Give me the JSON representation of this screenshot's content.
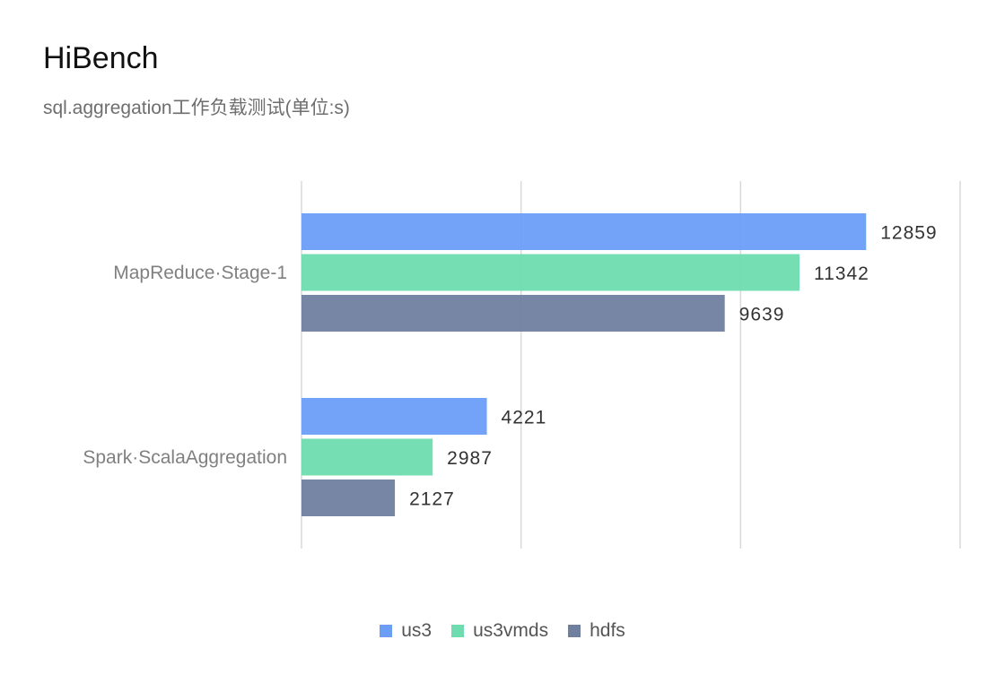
{
  "chart_data": {
    "type": "bar",
    "orientation": "horizontal",
    "title": "HiBench",
    "subtitle": "sql.aggregation工作负载测试(单位:s)",
    "categories": [
      "MapReduce·Stage-1",
      "Spark·ScalaAggregation"
    ],
    "series": [
      {
        "name": "us3",
        "color": "#6c9ef8",
        "values": [
          12859,
          4221
        ]
      },
      {
        "name": "us3vmds",
        "color": "#6fdcaf",
        "values": [
          11342,
          2987
        ]
      },
      {
        "name": "hdfs",
        "color": "#6f7f9f",
        "values": [
          9639,
          2127
        ]
      }
    ],
    "xlim": [
      0,
      15000
    ],
    "xlabel": "",
    "ylabel": "",
    "grid": true,
    "legend": "bottom-center"
  }
}
